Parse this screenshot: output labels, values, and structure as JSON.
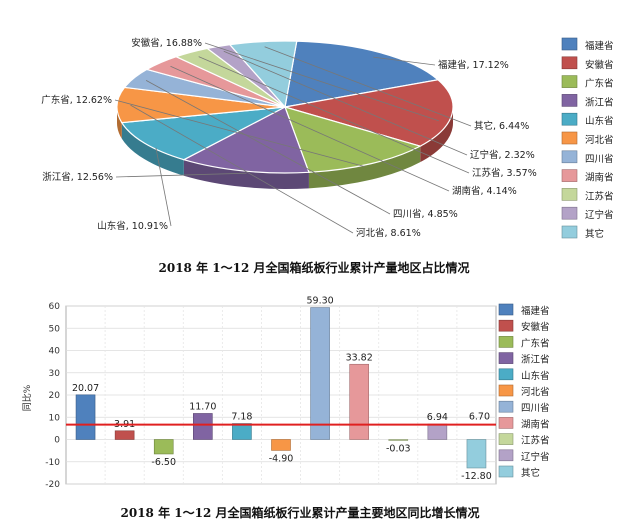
{
  "chart_data": [
    {
      "type": "pie",
      "title": "2018 年 1～12 月全国箱纸板行业累计产量地区占比情况",
      "legend_position": "right",
      "categories": [
        "福建省",
        "安徽省",
        "广东省",
        "浙江省",
        "山东省",
        "河北省",
        "四川省",
        "湖南省",
        "江苏省",
        "辽宁省",
        "其它"
      ],
      "values": [
        17.12,
        16.88,
        12.62,
        12.56,
        10.91,
        8.61,
        4.85,
        4.14,
        3.57,
        2.32,
        6.44
      ],
      "labels": [
        "福建省, 17.12%",
        "安徽省, 16.88%",
        "广东省, 12.62%",
        "浙江省, 12.56%",
        "山东省, 10.91%",
        "河北省, 8.61%",
        "四川省, 4.85%",
        "湖南省, 4.14%",
        "江苏省, 3.57%",
        "辽宁省, 2.32%",
        "其它, 6.44%"
      ]
    },
    {
      "type": "bar",
      "title": "2018 年 1～12 月全国箱纸板行业累计产量主要地区同比增长情况",
      "ylabel": "同比%",
      "legend_position": "right",
      "grid": true,
      "ylim": [
        -20,
        60
      ],
      "yticks": [
        "60",
        "50",
        "40",
        "30",
        "20",
        "10",
        "0",
        "-10",
        "-20"
      ],
      "categories": [
        "福建省",
        "安徽省",
        "广东省",
        "浙江省",
        "山东省",
        "河北省",
        "四川省",
        "湖南省",
        "江苏省",
        "辽宁省",
        "其它"
      ],
      "values": [
        20.07,
        3.91,
        -6.5,
        11.7,
        7.18,
        -4.9,
        59.3,
        33.82,
        -0.03,
        6.94,
        -12.8
      ],
      "value_labels": [
        "20.07",
        "3.91",
        "-6.50",
        "11.70",
        "7.18",
        "-4.90",
        "59.30",
        "33.82",
        "-0.03",
        "6.94",
        "-12.80"
      ],
      "reference_line": {
        "value": 6.7,
        "label": "6.70",
        "color": "#e02020"
      }
    }
  ],
  "colors": [
    "#4f81bd",
    "#c0504d",
    "#9bbb59",
    "#8064a2",
    "#4bacc6",
    "#f79646",
    "#95b3d7",
    "#e6989a",
    "#c4d79b",
    "#b3a2c7",
    "#93cddd"
  ]
}
